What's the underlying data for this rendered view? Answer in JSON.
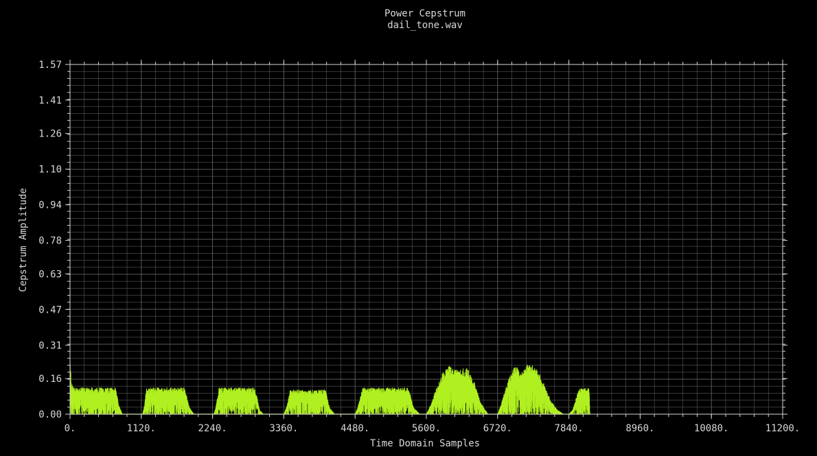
{
  "chart_data": {
    "type": "area",
    "title": "Power Cepstrum",
    "subtitle": "dail_tone.wav",
    "xlabel": "Time Domain Samples",
    "ylabel": "Cepstrum Amplitude",
    "xlim": [
      0,
      11200
    ],
    "ylim": [
      0,
      1.57
    ],
    "x_ticks": [
      0,
      1120,
      2240,
      3360,
      4480,
      5600,
      6720,
      7840,
      8960,
      10080,
      11200
    ],
    "x_tick_labels": [
      "0.",
      "1120.",
      "2240.",
      "3360.",
      "4480.",
      "5600.",
      "6720.",
      "7840.",
      "8960.",
      "10080.",
      "11200."
    ],
    "y_ticks": [
      0,
      0.16,
      0.31,
      0.47,
      0.63,
      0.78,
      0.94,
      1.1,
      1.26,
      1.41,
      1.57
    ],
    "y_tick_labels": [
      "0.00",
      "0.16",
      "0.31",
      "0.47",
      "0.63",
      "0.78",
      "0.94",
      "1.10",
      "1.26",
      "1.41",
      "1.57"
    ],
    "grid": true,
    "colors": {
      "background": "#000000",
      "series": "#b0f020",
      "grid": "#5a5a5a",
      "axis": "#d8d8d8",
      "text": "#d8d8d8"
    },
    "series": [
      {
        "x": [
          0,
          20,
          40,
          60,
          720,
          760,
          820,
          1140,
          1170,
          1200,
          1800,
          1880,
          1950,
          2260,
          2290,
          2340,
          2910,
          2980,
          3040,
          3360,
          3400,
          3460,
          4020,
          4080,
          4160,
          4480,
          4520,
          4600,
          5320,
          5400,
          5500,
          5600,
          5680,
          5760,
          5840,
          5960,
          6100,
          6240,
          6360,
          6460,
          6570,
          6720,
          6780,
          6840,
          6920,
          7000,
          7100,
          7200,
          7340,
          7460,
          7560,
          7660,
          7760,
          7840,
          7900,
          7960,
          8000,
          8040,
          8140,
          8160,
          8170
        ],
        "y": [
          0.3,
          0.14,
          0.13,
          0.12,
          0.12,
          0.05,
          0.0,
          0.0,
          0.04,
          0.12,
          0.12,
          0.03,
          0.0,
          0.0,
          0.03,
          0.12,
          0.12,
          0.02,
          0.0,
          0.0,
          0.03,
          0.11,
          0.11,
          0.03,
          0.0,
          0.0,
          0.03,
          0.12,
          0.12,
          0.03,
          0.0,
          0.0,
          0.05,
          0.12,
          0.18,
          0.22,
          0.2,
          0.21,
          0.14,
          0.05,
          0.0,
          0.0,
          0.05,
          0.11,
          0.18,
          0.22,
          0.19,
          0.23,
          0.21,
          0.13,
          0.06,
          0.02,
          0.0,
          0.0,
          0.02,
          0.08,
          0.11,
          0.12,
          0.12,
          0.12,
          0.0
        ]
      }
    ]
  }
}
